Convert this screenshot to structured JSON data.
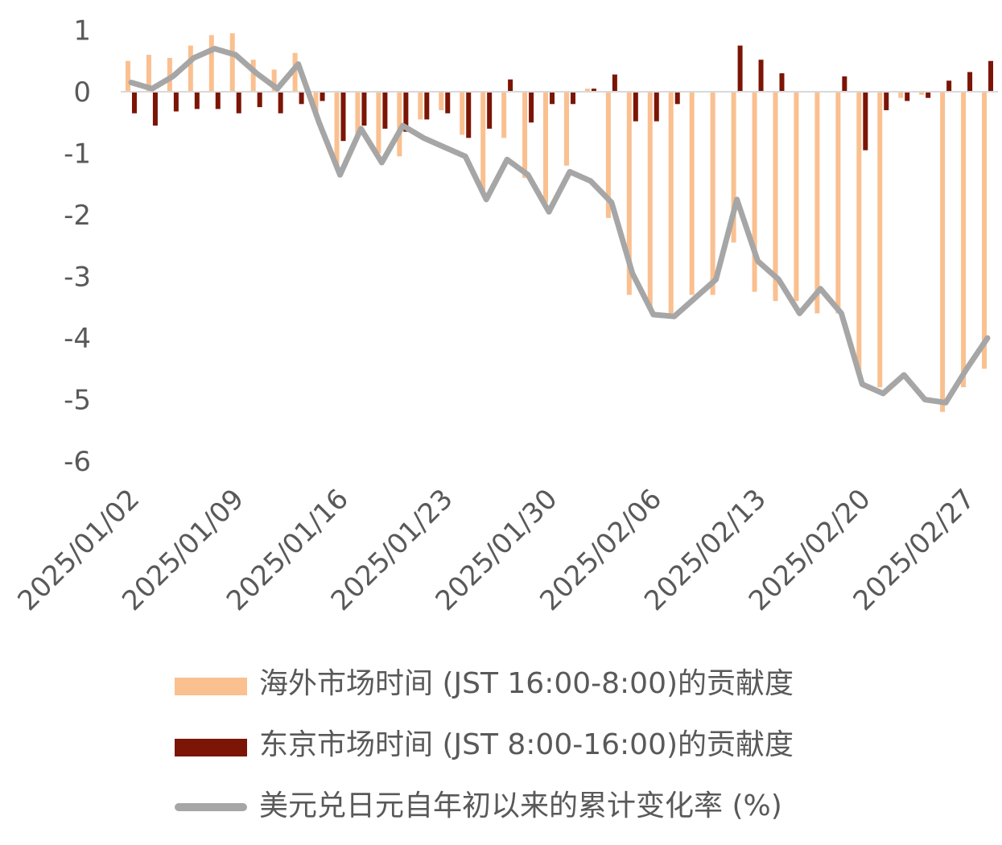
{
  "chart_data": {
    "type": "bar",
    "y_range": [
      -6,
      1
    ],
    "y_ticks": [
      "1",
      "0",
      "-1",
      "-2",
      "-3",
      "-4",
      "-5",
      "-6"
    ],
    "x_tick_labels": [
      "2025/01/02",
      "2025/01/09",
      "2025/01/16",
      "2025/01/23",
      "2025/01/30",
      "2025/02/06",
      "2025/02/13",
      "2025/02/20",
      "2025/02/27"
    ],
    "dates": [
      "2025/01/02",
      "2025/01/03",
      "2025/01/06",
      "2025/01/07",
      "2025/01/08",
      "2025/01/09",
      "2025/01/10",
      "2025/01/13",
      "2025/01/14",
      "2025/01/15",
      "2025/01/16",
      "2025/01/17",
      "2025/01/20",
      "2025/01/21",
      "2025/01/22",
      "2025/01/23",
      "2025/01/24",
      "2025/01/27",
      "2025/01/28",
      "2025/01/29",
      "2025/01/30",
      "2025/01/31",
      "2025/02/03",
      "2025/02/04",
      "2025/02/05",
      "2025/02/06",
      "2025/02/07",
      "2025/02/10",
      "2025/02/11",
      "2025/02/12",
      "2025/02/13",
      "2025/02/14",
      "2025/02/17",
      "2025/02/18",
      "2025/02/19",
      "2025/02/20",
      "2025/02/21",
      "2025/02/24",
      "2025/02/25",
      "2025/02/26",
      "2025/02/27",
      "2025/02/28"
    ],
    "series": [
      {
        "name": "海外市场时间 (JST 16:00-8:00)的贡献度",
        "kind": "bar",
        "color": "#FAC090",
        "values": [
          0.5,
          0.6,
          0.55,
          0.75,
          0.92,
          0.95,
          0.52,
          0.36,
          0.63,
          -0.4,
          -1.2,
          -0.7,
          -1.0,
          -1.05,
          -0.45,
          -0.3,
          -0.7,
          -1.6,
          -0.75,
          -1.4,
          -1.8,
          -1.2,
          0.05,
          -2.05,
          -3.3,
          -3.5,
          -3.6,
          -3.3,
          -3.3,
          -2.45,
          -3.25,
          -3.4,
          -3.4,
          -3.6,
          -3.6,
          -4.6,
          -4.8,
          -0.1,
          -0.05,
          -5.2,
          -4.8,
          -4.5
        ]
      },
      {
        "name": "东京市场时间 (JST 8:00-16:00)的贡献度",
        "kind": "bar",
        "color": "#7B1505",
        "values": [
          -0.35,
          -0.55,
          -0.32,
          -0.28,
          -0.28,
          -0.35,
          -0.25,
          -0.35,
          -0.2,
          -0.15,
          -0.8,
          -0.55,
          -0.6,
          -0.65,
          -0.45,
          -0.35,
          -0.75,
          -0.6,
          0.2,
          -0.5,
          -0.2,
          -0.2,
          0.05,
          0.28,
          -0.48,
          -0.48,
          -0.2,
          0.0,
          0.0,
          0.75,
          0.52,
          0.3,
          0.0,
          0.0,
          0.25,
          -0.95,
          -0.3,
          -0.15,
          -0.1,
          0.18,
          0.32,
          0.5
        ]
      },
      {
        "name": "美元兑日元自年初以来的累计变化率 (%)",
        "kind": "line",
        "color": "#A6A6A6",
        "values": [
          0.15,
          0.05,
          0.25,
          0.55,
          0.7,
          0.6,
          0.3,
          0.05,
          0.45,
          -0.5,
          -1.35,
          -0.6,
          -1.15,
          -0.55,
          -0.75,
          -0.9,
          -1.05,
          -1.75,
          -1.1,
          -1.35,
          -1.95,
          -1.3,
          -1.45,
          -1.8,
          -2.95,
          -3.62,
          -3.65,
          -3.35,
          -3.05,
          -1.75,
          -2.75,
          -3.05,
          -3.6,
          -3.2,
          -3.6,
          -4.75,
          -4.9,
          -4.6,
          -5.0,
          -5.05,
          -4.5,
          -4.0
        ]
      }
    ]
  },
  "legend": [
    {
      "label": "海外市场时间 (JST 16:00-8:00)的贡献度",
      "color": "#FAC090",
      "shape": "box"
    },
    {
      "label": "东京市场时间 (JST 8:00-16:00)的贡献度",
      "color": "#7B1505",
      "shape": "box"
    },
    {
      "label": "美元兑日元自年初以来的累计变化率 (%)",
      "color": "#A6A6A6",
      "shape": "line"
    }
  ]
}
